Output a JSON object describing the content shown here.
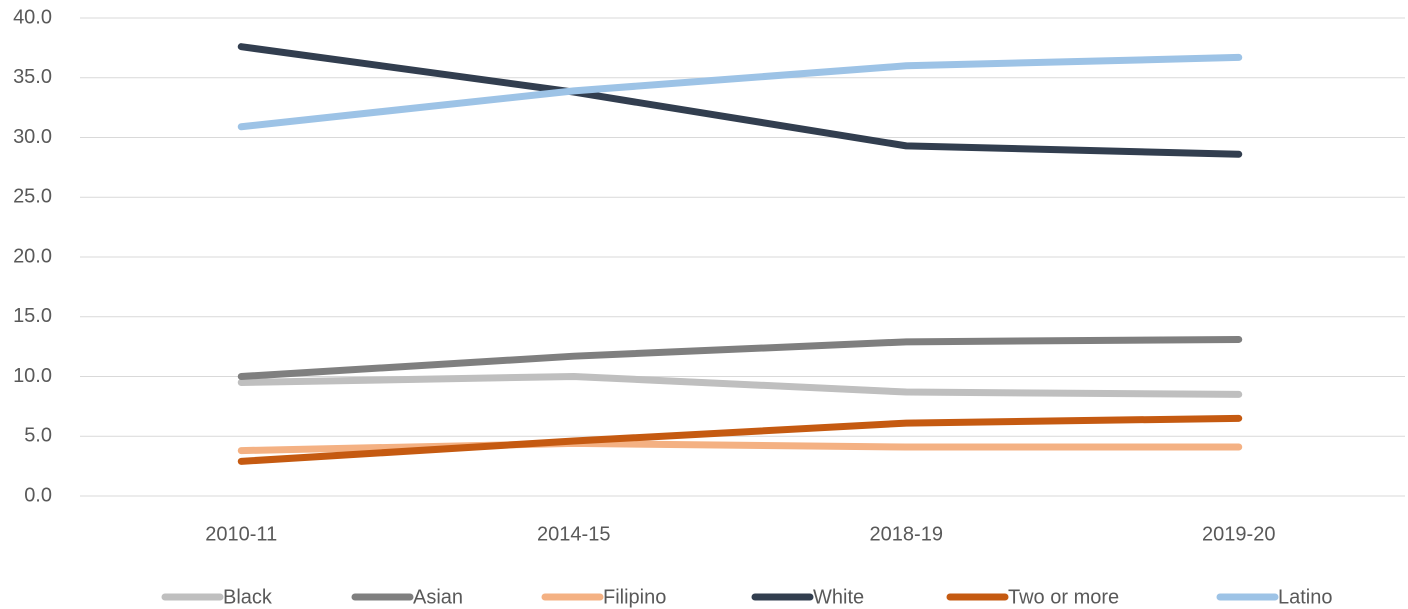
{
  "chart_data": {
    "type": "line",
    "categories": [
      "2010-11",
      "2014-15",
      "2018-19",
      "2019-20"
    ],
    "series": [
      {
        "name": "Black",
        "color": "#bfbfbf",
        "values": [
          9.5,
          10.0,
          8.7,
          8.5
        ]
      },
      {
        "name": "Asian",
        "color": "#7f7f7f",
        "values": [
          10.0,
          11.7,
          12.9,
          13.1
        ]
      },
      {
        "name": "Filipino",
        "color": "#f4b183",
        "values": [
          3.8,
          4.4,
          4.1,
          4.1
        ]
      },
      {
        "name": "White",
        "color": "#323e4f",
        "values": [
          37.6,
          33.8,
          29.3,
          28.6
        ]
      },
      {
        "name": "Two or more",
        "color": "#c55a11",
        "values": [
          2.9,
          4.6,
          6.1,
          6.5
        ]
      },
      {
        "name": "Latino",
        "color": "#9dc3e6",
        "values": [
          30.9,
          33.9,
          36.0,
          36.7
        ]
      }
    ],
    "ylim": [
      0,
      40
    ],
    "yticks": [
      {
        "value": 0,
        "label": "0.0"
      },
      {
        "value": 5,
        "label": "5.0"
      },
      {
        "value": 10,
        "label": "10.0"
      },
      {
        "value": 15,
        "label": "15.0"
      },
      {
        "value": 20,
        "label": "20.0"
      },
      {
        "value": 25,
        "label": "25.0"
      },
      {
        "value": 30,
        "label": "30.0"
      },
      {
        "value": 35,
        "label": "35.0"
      },
      {
        "value": 40,
        "label": "40.0"
      }
    ],
    "grid": true,
    "legend": "bottom"
  }
}
